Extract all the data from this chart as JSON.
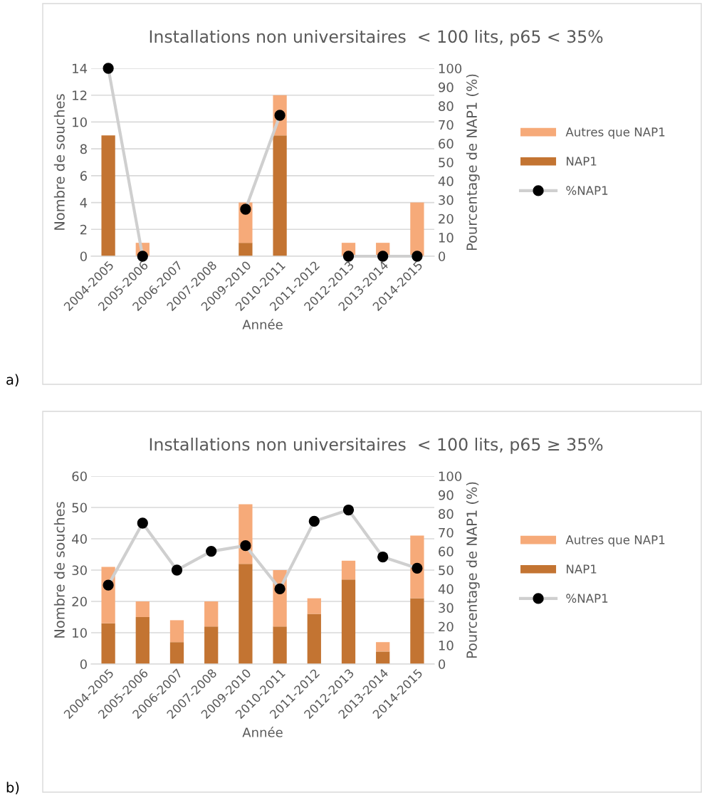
{
  "chart_data": [
    {
      "type": "bar",
      "title": "Installations non universitaires  < 100 lits, p65 < 35%",
      "xlabel": "Année",
      "ylabel": "Nombre de souches",
      "y2label": "Pourcentage de NAP1 (%)",
      "categories": [
        "2004-2005",
        "2005-2006",
        "2006-2007",
        "2007-2008",
        "2009-2010",
        "2010-2011",
        "2011-2012",
        "2012-2013",
        "2013-2014",
        "2014-2015"
      ],
      "stacked": true,
      "series": [
        {
          "name": "NAP1",
          "color": "#c37432",
          "values": [
            9,
            0,
            0,
            0,
            1,
            9,
            0,
            0,
            0,
            0
          ]
        },
        {
          "name": "Autres que NAP1",
          "color": "#f6aa79",
          "values": [
            0,
            1,
            0,
            0,
            3,
            3,
            0,
            1,
            1,
            4
          ]
        },
        {
          "name": "%NAP1",
          "type": "line",
          "axis": "y2",
          "color": "#cfcfcf",
          "marker": "circle",
          "line_style": "solid",
          "values": [
            100,
            0,
            null,
            null,
            25,
            75,
            null,
            0,
            0,
            0
          ]
        }
      ],
      "ylim": [
        0,
        14
      ],
      "yticks": [
        0,
        2,
        4,
        6,
        8,
        10,
        12,
        14
      ],
      "y2lim": [
        0,
        100
      ],
      "y2ticks": [
        0,
        10,
        20,
        30,
        40,
        50,
        60,
        70,
        80,
        90,
        100
      ],
      "grid": "y",
      "legend": "right",
      "annotations": [
        "a)"
      ]
    },
    {
      "type": "bar",
      "title": "Installations non universitaires  < 100 lits, p65 ≥ 35%",
      "xlabel": "Année",
      "ylabel": "Nombre de souches",
      "y2label": "Pourcentage de NAP1 (%)",
      "categories": [
        "2004-2005",
        "2005-2006",
        "2006-2007",
        "2007-2008",
        "2009-2010",
        "2010-2011",
        "2011-2012",
        "2012-2013",
        "2013-2014",
        "2014-2015"
      ],
      "stacked": true,
      "series": [
        {
          "name": "NAP1",
          "color": "#c37432",
          "values": [
            13,
            15,
            7,
            12,
            32,
            12,
            16,
            27,
            4,
            21
          ]
        },
        {
          "name": "Autres que NAP1",
          "color": "#f6aa79",
          "values": [
            18,
            5,
            7,
            8,
            19,
            18,
            5,
            6,
            3,
            20
          ]
        },
        {
          "name": "%NAP1",
          "type": "line",
          "axis": "y2",
          "color": "#cfcfcf",
          "marker": "circle",
          "line_style": "solid",
          "values": [
            42,
            75,
            50,
            60,
            63,
            40,
            76,
            82,
            57,
            51
          ]
        }
      ],
      "ylim": [
        0,
        60
      ],
      "yticks": [
        0,
        10,
        20,
        30,
        40,
        50,
        60
      ],
      "y2lim": [
        0,
        100
      ],
      "y2ticks": [
        0,
        10,
        20,
        30,
        40,
        50,
        60,
        70,
        80,
        90,
        100
      ],
      "grid": "y",
      "legend": "right",
      "annotations": [
        "b)"
      ]
    }
  ]
}
